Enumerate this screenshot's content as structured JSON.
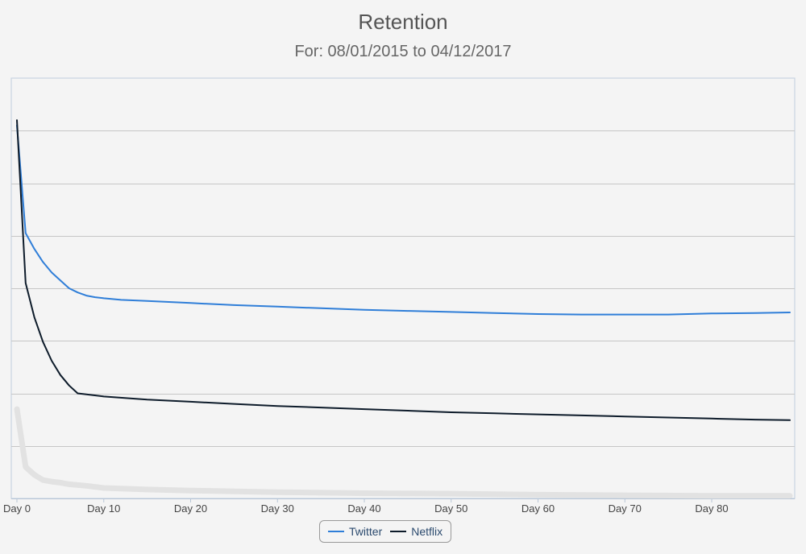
{
  "chart_data": {
    "type": "line",
    "title": "Retention",
    "subtitle": "For: 08/01/2015 to 04/12/2017",
    "xlabel": "",
    "ylabel": "",
    "x_ticks": [
      "Day 0",
      "Day 10",
      "Day 20",
      "Day 30",
      "Day 40",
      "Day 50",
      "Day 60",
      "Day 70",
      "Day 80"
    ],
    "x_tick_values": [
      0,
      10,
      20,
      30,
      40,
      50,
      60,
      70,
      80
    ],
    "xlim": [
      0,
      89
    ],
    "ylim": [
      0,
      8
    ],
    "gridlines_y": [
      1,
      2,
      3,
      4,
      5,
      6,
      7
    ],
    "legend_position": "bottom-center",
    "series": [
      {
        "name": "Twitter",
        "color": "#2f7ed8",
        "x": [
          0,
          1,
          2,
          3,
          4,
          5,
          6,
          7,
          8,
          9,
          10,
          12,
          15,
          20,
          25,
          30,
          35,
          40,
          45,
          50,
          55,
          60,
          65,
          70,
          75,
          80,
          85,
          89
        ],
        "y": [
          7.1,
          5.05,
          4.75,
          4.5,
          4.3,
          4.15,
          4.0,
          3.92,
          3.86,
          3.83,
          3.81,
          3.78,
          3.76,
          3.72,
          3.68,
          3.65,
          3.62,
          3.59,
          3.57,
          3.55,
          3.53,
          3.51,
          3.5,
          3.5,
          3.5,
          3.52,
          3.53,
          3.54
        ]
      },
      {
        "name": "Netflix",
        "color": "#0d1b2a",
        "x": [
          0,
          1,
          2,
          3,
          4,
          5,
          6,
          7,
          8,
          10,
          15,
          20,
          25,
          30,
          35,
          40,
          45,
          50,
          55,
          60,
          65,
          70,
          75,
          80,
          85,
          89
        ],
        "y": [
          7.2,
          4.1,
          3.45,
          2.98,
          2.62,
          2.35,
          2.15,
          2.0,
          1.98,
          1.94,
          1.88,
          1.84,
          1.8,
          1.76,
          1.73,
          1.7,
          1.67,
          1.64,
          1.62,
          1.6,
          1.58,
          1.56,
          1.54,
          1.52,
          1.5,
          1.49
        ]
      },
      {
        "color": "#e2e2e2",
        "x": [
          0,
          1,
          2,
          3,
          4,
          5,
          6,
          8,
          10,
          15,
          20,
          30,
          40,
          50,
          60,
          70,
          80,
          89
        ],
        "y": [
          1.7,
          0.6,
          0.45,
          0.35,
          0.32,
          0.3,
          0.27,
          0.24,
          0.2,
          0.17,
          0.15,
          0.12,
          0.1,
          0.09,
          0.07,
          0.06,
          0.05,
          0.05
        ]
      }
    ]
  }
}
